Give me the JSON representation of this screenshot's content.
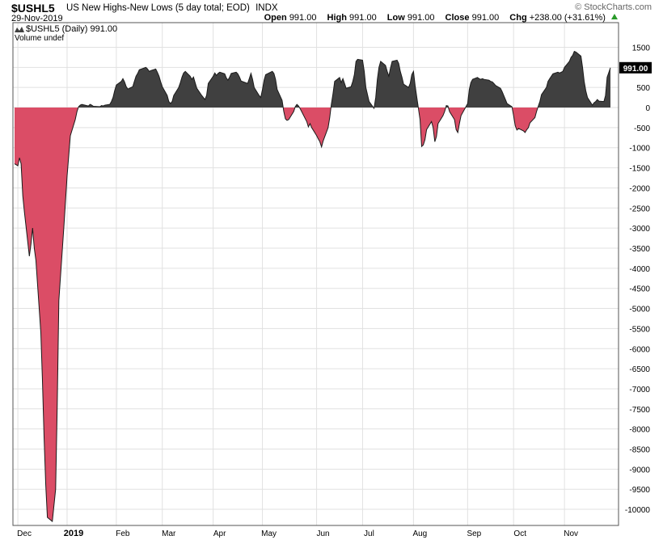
{
  "header": {
    "symbol": "$USHL5",
    "description": "US New Highs-New Lows (5 day total; EOD)",
    "exchange": "INDX",
    "date": "29-Nov-2019",
    "watermark": "© StockCharts.com",
    "open_label": "Open",
    "open_value": "991.00",
    "high_label": "High",
    "high_value": "991.00",
    "low_label": "Low",
    "low_value": "991.00",
    "close_label": "Close",
    "close_value": "991.00",
    "chg_label": "Chg",
    "chg_value": "+238.00 (+31.61%)"
  },
  "legend": {
    "series": "$USHL5 (Daily) 991.00",
    "volume": "Volume undef"
  },
  "colors": {
    "positive_fill": "#404040",
    "negative_fill": "#db4d66",
    "line": "#1a1a1a",
    "last_value_box": "#000000"
  },
  "chart_data": {
    "type": "area",
    "symbol": "$USHL5",
    "ylim": [
      -10200,
      1550
    ],
    "ytick_values": [
      1500,
      1000,
      500,
      0,
      -500,
      -1000,
      -1500,
      -2000,
      -2500,
      -3000,
      -3500,
      -4000,
      -4500,
      -5000,
      -5500,
      -6000,
      -6500,
      -7000,
      -7500,
      -8000,
      -8500,
      -9000,
      -9500,
      -10000
    ],
    "xlim": [
      "2018-12-01",
      "2019-11-29"
    ],
    "xticks": [
      {
        "date": "2018-12-03",
        "label": "Dec",
        "bold": false
      },
      {
        "date": "2019-01-02",
        "label": "2019",
        "bold": true
      },
      {
        "date": "2019-02-01",
        "label": "Feb",
        "bold": false
      },
      {
        "date": "2019-03-01",
        "label": "Mar",
        "bold": false
      },
      {
        "date": "2019-04-01",
        "label": "Apr",
        "bold": false
      },
      {
        "date": "2019-05-01",
        "label": "May",
        "bold": false
      },
      {
        "date": "2019-06-03",
        "label": "Jun",
        "bold": false
      },
      {
        "date": "2019-07-01",
        "label": "Jul",
        "bold": false
      },
      {
        "date": "2019-08-01",
        "label": "Aug",
        "bold": false
      },
      {
        "date": "2019-09-03",
        "label": "Sep",
        "bold": false
      },
      {
        "date": "2019-10-01",
        "label": "Oct",
        "bold": false
      },
      {
        "date": "2019-11-01",
        "label": "Nov",
        "bold": false
      }
    ],
    "last_value": 991,
    "last_value_label": "991.00",
    "series": [
      {
        "points": [
          [
            "2018-12-01",
            -1400
          ],
          [
            "2018-12-03",
            -1450
          ],
          [
            "2018-12-04",
            -1250
          ],
          [
            "2018-12-05",
            -1400
          ],
          [
            "2018-12-06",
            -2200
          ],
          [
            "2018-12-07",
            -2600
          ],
          [
            "2018-12-10",
            -3700
          ],
          [
            "2018-12-11",
            -3400
          ],
          [
            "2018-12-12",
            -3000
          ],
          [
            "2018-12-13",
            -3500
          ],
          [
            "2018-12-14",
            -3800
          ],
          [
            "2018-12-17",
            -5600
          ],
          [
            "2018-12-18",
            -6800
          ],
          [
            "2018-12-19",
            -8200
          ],
          [
            "2018-12-20",
            -9400
          ],
          [
            "2018-12-21",
            -10200
          ],
          [
            "2018-12-24",
            -10300
          ],
          [
            "2018-12-26",
            -9500
          ],
          [
            "2018-12-27",
            -7400
          ],
          [
            "2018-12-28",
            -4800
          ],
          [
            "2018-12-31",
            -3000
          ],
          [
            "2019-01-02",
            -1700
          ],
          [
            "2019-01-03",
            -1200
          ],
          [
            "2019-01-04",
            -700
          ],
          [
            "2019-01-07",
            -300
          ],
          [
            "2019-01-08",
            -100
          ],
          [
            "2019-01-09",
            20
          ],
          [
            "2019-01-10",
            60
          ],
          [
            "2019-01-11",
            80
          ],
          [
            "2019-01-14",
            50
          ],
          [
            "2019-01-15",
            40
          ],
          [
            "2019-01-16",
            80
          ],
          [
            "2019-01-17",
            60
          ],
          [
            "2019-01-18",
            30
          ],
          [
            "2019-01-22",
            20
          ],
          [
            "2019-01-23",
            50
          ],
          [
            "2019-01-24",
            40
          ],
          [
            "2019-01-25",
            60
          ],
          [
            "2019-01-28",
            80
          ],
          [
            "2019-01-29",
            150
          ],
          [
            "2019-01-30",
            250
          ],
          [
            "2019-01-31",
            420
          ],
          [
            "2019-02-01",
            560
          ],
          [
            "2019-02-04",
            650
          ],
          [
            "2019-02-05",
            720
          ],
          [
            "2019-02-06",
            640
          ],
          [
            "2019-02-07",
            520
          ],
          [
            "2019-02-08",
            460
          ],
          [
            "2019-02-11",
            520
          ],
          [
            "2019-02-12",
            650
          ],
          [
            "2019-02-13",
            780
          ],
          [
            "2019-02-14",
            850
          ],
          [
            "2019-02-15",
            940
          ],
          [
            "2019-02-19",
            1000
          ],
          [
            "2019-02-20",
            960
          ],
          [
            "2019-02-21",
            900
          ],
          [
            "2019-02-22",
            920
          ],
          [
            "2019-02-25",
            960
          ],
          [
            "2019-02-26",
            880
          ],
          [
            "2019-02-27",
            780
          ],
          [
            "2019-02-28",
            640
          ],
          [
            "2019-03-01",
            520
          ],
          [
            "2019-03-04",
            300
          ],
          [
            "2019-03-05",
            150
          ],
          [
            "2019-03-06",
            100
          ],
          [
            "2019-03-07",
            150
          ],
          [
            "2019-03-08",
            300
          ],
          [
            "2019-03-11",
            500
          ],
          [
            "2019-03-12",
            620
          ],
          [
            "2019-03-13",
            760
          ],
          [
            "2019-03-14",
            860
          ],
          [
            "2019-03-15",
            900
          ],
          [
            "2019-03-18",
            780
          ],
          [
            "2019-03-19",
            700
          ],
          [
            "2019-03-20",
            760
          ],
          [
            "2019-03-21",
            620
          ],
          [
            "2019-03-22",
            480
          ],
          [
            "2019-03-25",
            300
          ],
          [
            "2019-03-26",
            250
          ],
          [
            "2019-03-27",
            200
          ],
          [
            "2019-03-28",
            300
          ],
          [
            "2019-03-29",
            600
          ],
          [
            "2019-04-01",
            780
          ],
          [
            "2019-04-02",
            860
          ],
          [
            "2019-04-03",
            800
          ],
          [
            "2019-04-04",
            850
          ],
          [
            "2019-04-05",
            880
          ],
          [
            "2019-04-08",
            840
          ],
          [
            "2019-04-09",
            740
          ],
          [
            "2019-04-10",
            680
          ],
          [
            "2019-04-11",
            760
          ],
          [
            "2019-04-12",
            850
          ],
          [
            "2019-04-15",
            880
          ],
          [
            "2019-04-16",
            840
          ],
          [
            "2019-04-17",
            760
          ],
          [
            "2019-04-18",
            660
          ],
          [
            "2019-04-22",
            600
          ],
          [
            "2019-04-23",
            720
          ],
          [
            "2019-04-24",
            850
          ],
          [
            "2019-04-25",
            700
          ],
          [
            "2019-04-26",
            500
          ],
          [
            "2019-04-29",
            300
          ],
          [
            "2019-04-30",
            250
          ],
          [
            "2019-05-01",
            450
          ],
          [
            "2019-05-02",
            680
          ],
          [
            "2019-05-03",
            820
          ],
          [
            "2019-05-06",
            880
          ],
          [
            "2019-05-07",
            900
          ],
          [
            "2019-05-08",
            850
          ],
          [
            "2019-05-09",
            700
          ],
          [
            "2019-05-10",
            450
          ],
          [
            "2019-05-13",
            180
          ],
          [
            "2019-05-14",
            -100
          ],
          [
            "2019-05-15",
            -280
          ],
          [
            "2019-05-16",
            -320
          ],
          [
            "2019-05-17",
            -300
          ],
          [
            "2019-05-20",
            -100
          ],
          [
            "2019-05-21",
            20
          ],
          [
            "2019-05-22",
            80
          ],
          [
            "2019-05-23",
            40
          ],
          [
            "2019-05-24",
            -30
          ],
          [
            "2019-05-28",
            -350
          ],
          [
            "2019-05-29",
            -480
          ],
          [
            "2019-05-30",
            -400
          ],
          [
            "2019-05-31",
            -500
          ],
          [
            "2019-06-03",
            -700
          ],
          [
            "2019-06-04",
            -780
          ],
          [
            "2019-06-05",
            -850
          ],
          [
            "2019-06-06",
            -980
          ],
          [
            "2019-06-07",
            -830
          ],
          [
            "2019-06-10",
            -500
          ],
          [
            "2019-06-11",
            -250
          ],
          [
            "2019-06-12",
            80
          ],
          [
            "2019-06-13",
            350
          ],
          [
            "2019-06-14",
            650
          ],
          [
            "2019-06-17",
            750
          ],
          [
            "2019-06-18",
            620
          ],
          [
            "2019-06-19",
            720
          ],
          [
            "2019-06-20",
            600
          ],
          [
            "2019-06-21",
            480
          ],
          [
            "2019-06-24",
            520
          ],
          [
            "2019-06-25",
            640
          ],
          [
            "2019-06-26",
            820
          ],
          [
            "2019-06-27",
            1150
          ],
          [
            "2019-06-28",
            1200
          ],
          [
            "2019-07-01",
            1180
          ],
          [
            "2019-07-02",
            900
          ],
          [
            "2019-07-03",
            500
          ],
          [
            "2019-07-05",
            150
          ],
          [
            "2019-07-08",
            -20
          ],
          [
            "2019-07-09",
            250
          ],
          [
            "2019-07-10",
            700
          ],
          [
            "2019-07-11",
            1000
          ],
          [
            "2019-07-12",
            1150
          ],
          [
            "2019-07-15",
            1050
          ],
          [
            "2019-07-16",
            900
          ],
          [
            "2019-07-17",
            780
          ],
          [
            "2019-07-18",
            980
          ],
          [
            "2019-07-19",
            1150
          ],
          [
            "2019-07-22",
            1180
          ],
          [
            "2019-07-23",
            1100
          ],
          [
            "2019-07-24",
            900
          ],
          [
            "2019-07-25",
            750
          ],
          [
            "2019-07-26",
            580
          ],
          [
            "2019-07-29",
            500
          ],
          [
            "2019-07-30",
            600
          ],
          [
            "2019-07-31",
            820
          ],
          [
            "2019-08-01",
            900
          ],
          [
            "2019-08-02",
            550
          ],
          [
            "2019-08-05",
            -300
          ],
          [
            "2019-08-06",
            -970
          ],
          [
            "2019-08-07",
            -930
          ],
          [
            "2019-08-08",
            -800
          ],
          [
            "2019-08-09",
            -550
          ],
          [
            "2019-08-12",
            -350
          ],
          [
            "2019-08-13",
            -500
          ],
          [
            "2019-08-14",
            -850
          ],
          [
            "2019-08-15",
            -720
          ],
          [
            "2019-08-16",
            -400
          ],
          [
            "2019-08-19",
            -200
          ],
          [
            "2019-08-20",
            -100
          ],
          [
            "2019-08-21",
            50
          ],
          [
            "2019-08-22",
            40
          ],
          [
            "2019-08-23",
            -100
          ],
          [
            "2019-08-26",
            -300
          ],
          [
            "2019-08-27",
            -550
          ],
          [
            "2019-08-28",
            -620
          ],
          [
            "2019-08-29",
            -400
          ],
          [
            "2019-08-30",
            -200
          ],
          [
            "2019-09-03",
            100
          ],
          [
            "2019-09-04",
            450
          ],
          [
            "2019-09-05",
            620
          ],
          [
            "2019-09-06",
            700
          ],
          [
            "2019-09-09",
            750
          ],
          [
            "2019-09-10",
            720
          ],
          [
            "2019-09-11",
            700
          ],
          [
            "2019-09-12",
            720
          ],
          [
            "2019-09-13",
            700
          ],
          [
            "2019-09-16",
            680
          ],
          [
            "2019-09-17",
            650
          ],
          [
            "2019-09-18",
            640
          ],
          [
            "2019-09-19",
            600
          ],
          [
            "2019-09-20",
            550
          ],
          [
            "2019-09-23",
            480
          ],
          [
            "2019-09-24",
            400
          ],
          [
            "2019-09-25",
            300
          ],
          [
            "2019-09-26",
            200
          ],
          [
            "2019-09-27",
            100
          ],
          [
            "2019-09-30",
            20
          ],
          [
            "2019-10-01",
            -200
          ],
          [
            "2019-10-02",
            -450
          ],
          [
            "2019-10-03",
            -560
          ],
          [
            "2019-10-04",
            -520
          ],
          [
            "2019-10-07",
            -580
          ],
          [
            "2019-10-08",
            -620
          ],
          [
            "2019-10-09",
            -550
          ],
          [
            "2019-10-10",
            -500
          ],
          [
            "2019-10-11",
            -380
          ],
          [
            "2019-10-14",
            -250
          ],
          [
            "2019-10-15",
            -100
          ],
          [
            "2019-10-16",
            30
          ],
          [
            "2019-10-17",
            150
          ],
          [
            "2019-10-18",
            320
          ],
          [
            "2019-10-21",
            500
          ],
          [
            "2019-10-22",
            650
          ],
          [
            "2019-10-23",
            720
          ],
          [
            "2019-10-24",
            780
          ],
          [
            "2019-10-25",
            840
          ],
          [
            "2019-10-28",
            880
          ],
          [
            "2019-10-29",
            860
          ],
          [
            "2019-10-30",
            880
          ],
          [
            "2019-10-31",
            900
          ],
          [
            "2019-11-01",
            1000
          ],
          [
            "2019-11-04",
            1150
          ],
          [
            "2019-11-05",
            1250
          ],
          [
            "2019-11-06",
            1300
          ],
          [
            "2019-11-07",
            1400
          ],
          [
            "2019-11-08",
            1380
          ],
          [
            "2019-11-11",
            1280
          ],
          [
            "2019-11-12",
            1000
          ],
          [
            "2019-11-13",
            650
          ],
          [
            "2019-11-14",
            420
          ],
          [
            "2019-11-15",
            250
          ],
          [
            "2019-11-18",
            60
          ],
          [
            "2019-11-19",
            120
          ],
          [
            "2019-11-20",
            150
          ],
          [
            "2019-11-21",
            200
          ],
          [
            "2019-11-22",
            160
          ],
          [
            "2019-11-25",
            150
          ],
          [
            "2019-11-26",
            300
          ],
          [
            "2019-11-27",
            753
          ],
          [
            "2019-11-29",
            991
          ]
        ]
      }
    ]
  }
}
